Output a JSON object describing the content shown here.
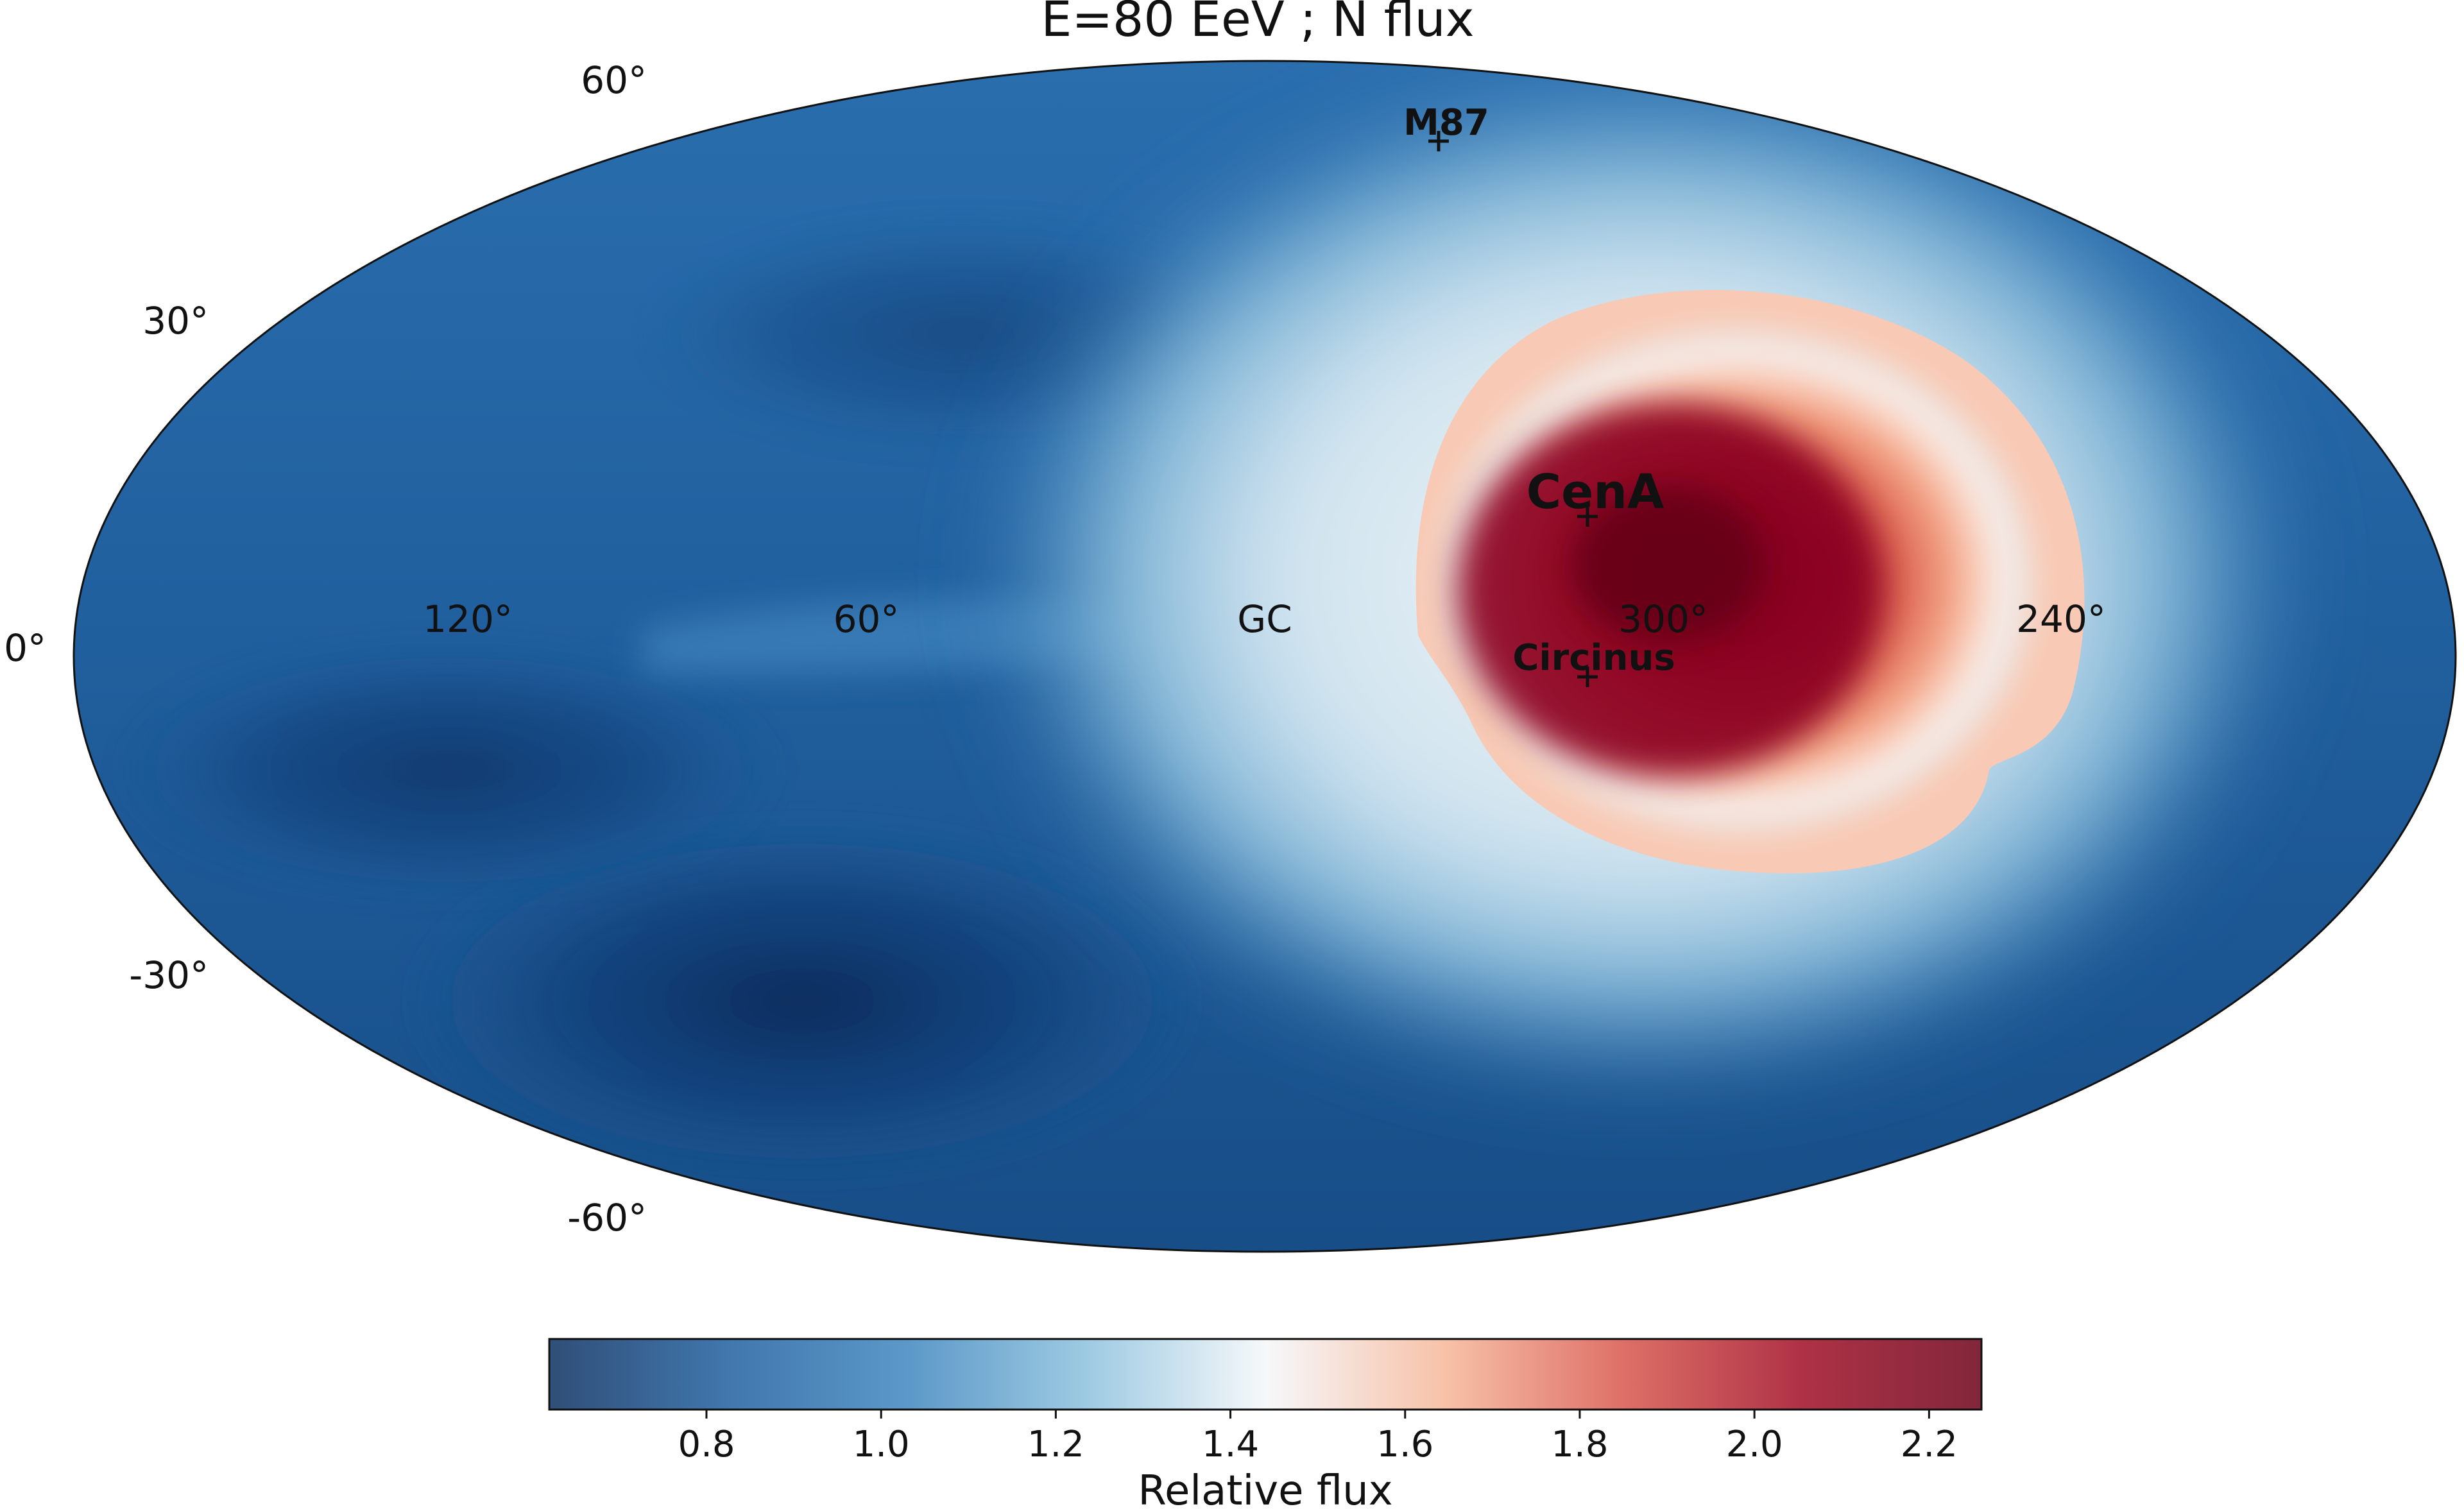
{
  "chart_data": {
    "type": "heatmap",
    "projection": "mollweide",
    "coordinate_system": "galactic",
    "title": "E=80 EeV ; N flux",
    "colorbar": {
      "label": "Relative flux",
      "range": [
        0.62,
        2.26
      ],
      "ticks": [
        0.8,
        1.0,
        1.2,
        1.4,
        1.6,
        1.8,
        2.0,
        2.2
      ],
      "tick_labels": [
        "0.8",
        "1.0",
        "1.2",
        "1.4",
        "1.6",
        "1.8",
        "2.0",
        "2.2"
      ],
      "colormap": [
        "#0b2f60",
        "#1f5f9f",
        "#3f86bf",
        "#8cc1dd",
        "#f4f7f9",
        "#f6b799",
        "#d8564c",
        "#a00d25",
        "#6c0018"
      ]
    },
    "longitude_labels": [
      {
        "value": 120,
        "text": "120°"
      },
      {
        "value": 60,
        "text": "60°"
      },
      {
        "value": 0,
        "text": "GC"
      },
      {
        "value": 300,
        "text": "300°"
      },
      {
        "value": 240,
        "text": "240°"
      }
    ],
    "latitude_labels": [
      {
        "value": 60,
        "text": "60°"
      },
      {
        "value": 30,
        "text": "30°"
      },
      {
        "value": 0,
        "text": "0°"
      },
      {
        "value": -30,
        "text": "-30°"
      },
      {
        "value": -60,
        "text": "-60°"
      }
    ],
    "sources": [
      {
        "name": "M87",
        "l": 283.8,
        "b": 74.5,
        "marker": "+"
      },
      {
        "name": "CenA",
        "l": 309.5,
        "b": 19.4,
        "marker": "+"
      },
      {
        "name": "Circinus",
        "l": 311.3,
        "b": -3.8,
        "marker": "+"
      }
    ],
    "hotspot": {
      "l": 300,
      "b": 10,
      "peak_relative_flux": 2.26
    },
    "minimum_region": {
      "l": 75,
      "b": -45,
      "relative_flux": 0.62
    }
  }
}
